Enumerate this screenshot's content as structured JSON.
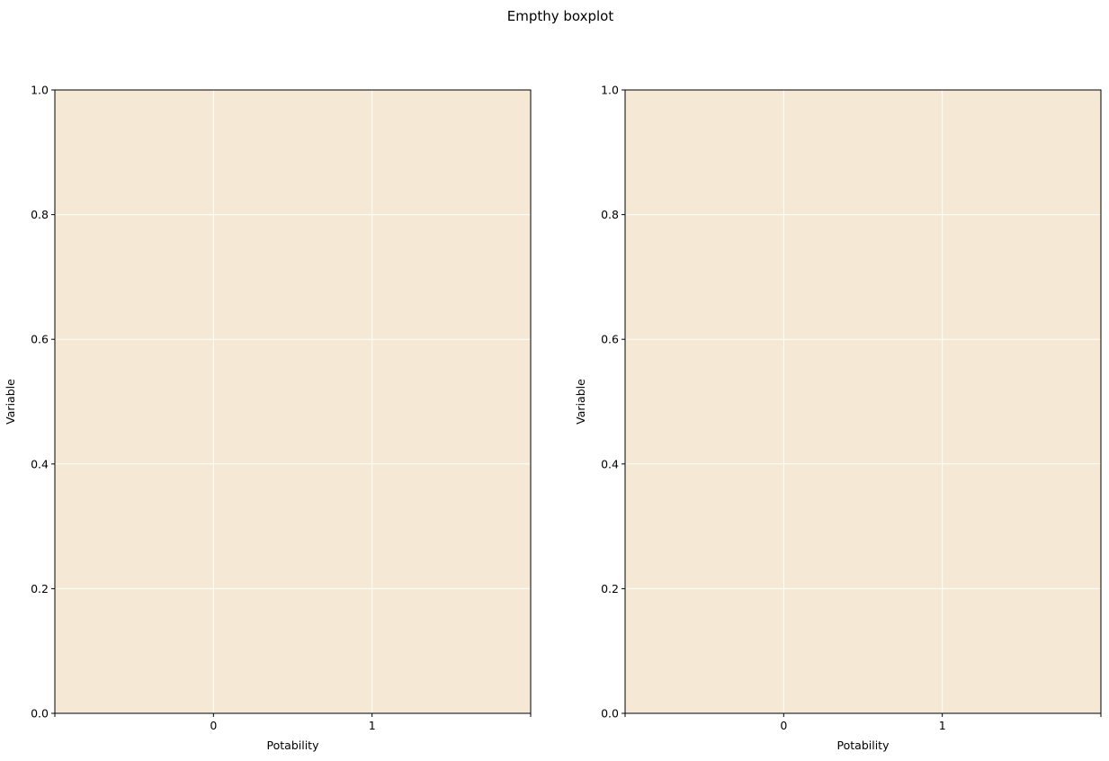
{
  "title": "Empthy boxplot",
  "chart_data": [
    {
      "type": "box",
      "xlabel": "Potability",
      "ylabel": "Variable",
      "xlim": [
        -1,
        2
      ],
      "xticks": [
        {
          "value": -1,
          "label": null
        },
        0,
        1,
        {
          "value": 2,
          "label": null
        }
      ],
      "ylim": [
        0,
        1
      ],
      "yticks": [
        {
          "value": 0,
          "label": "0.0"
        },
        0.2,
        0.4,
        0.6,
        0.8,
        {
          "value": 1,
          "label": "1.0"
        }
      ],
      "grid": true,
      "background": "#f5e9d5"
    },
    {
      "type": "box",
      "xlabel": "Potability",
      "ylabel": "Variable",
      "xlim": [
        -1,
        2
      ],
      "xticks": [
        {
          "value": -1,
          "label": null
        },
        0,
        1,
        {
          "value": 2,
          "label": null
        }
      ],
      "ylim": [
        0,
        1
      ],
      "yticks": [
        {
          "value": 0,
          "label": "0.0"
        },
        0.2,
        0.4,
        0.6,
        0.8,
        {
          "value": 1,
          "label": "1.0"
        }
      ],
      "grid": true,
      "background": "#f5e9d5"
    }
  ]
}
